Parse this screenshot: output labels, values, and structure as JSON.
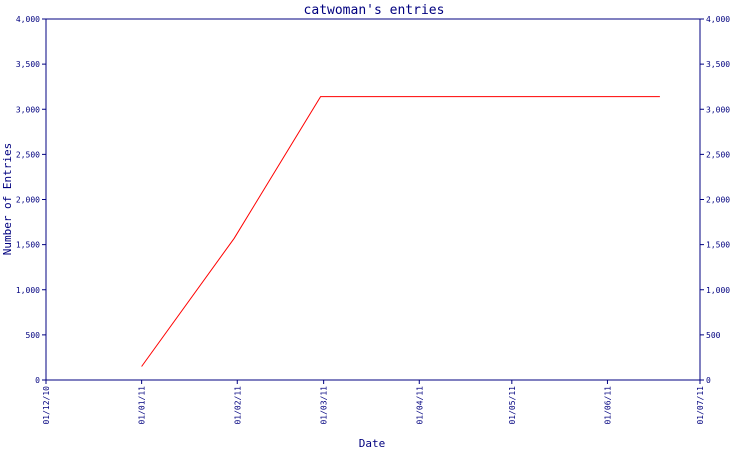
{
  "chart_data": {
    "type": "line",
    "title": "catwoman's entries",
    "xlabel": "Date",
    "ylabel": "Number of Entries",
    "x_tick_labels": [
      "01/12/10",
      "01/01/11",
      "01/02/11",
      "01/03/11",
      "01/04/11",
      "01/05/11",
      "01/06/11",
      "01/07/11"
    ],
    "x_ticks": [
      "2010-12-01",
      "2011-01-01",
      "2011-02-01",
      "2011-03-01",
      "2011-04-01",
      "2011-05-01",
      "2011-06-01",
      "2011-07-01"
    ],
    "xlim": [
      "2010-12-01",
      "2011-07-01"
    ],
    "y_tick_labels": [
      "0",
      "500",
      "1,000",
      "1,500",
      "2,000",
      "2,500",
      "3,000",
      "3,500",
      "4,000"
    ],
    "y_ticks": [
      0,
      500,
      1000,
      1500,
      2000,
      2500,
      3000,
      3500,
      4000
    ],
    "ylim": [
      0,
      4000
    ],
    "grid": false,
    "secondary_y_axis": true,
    "series": [
      {
        "color": "#ff0000",
        "x": [
          "2011-01-01",
          "2011-01-31",
          "2011-02-28",
          "2011-06-18"
        ],
        "y": [
          150,
          1570,
          3140,
          3140
        ]
      }
    ]
  }
}
